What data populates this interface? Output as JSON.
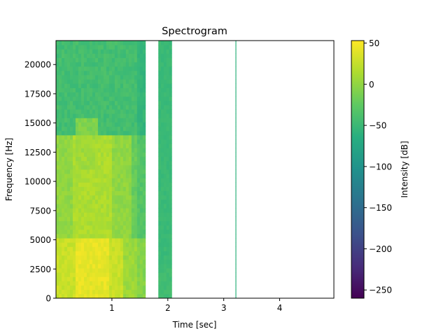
{
  "chart_data": {
    "type": "heatmap",
    "title": "Spectrogram",
    "xlabel": "Time [sec]",
    "ylabel": "Frequency [Hz]",
    "colorbar_label": "Intensity [dB]",
    "colormap": "viridis",
    "xlim": [
      0.0,
      4.97
    ],
    "ylim": [
      0,
      22050
    ],
    "x_ticks": [
      1,
      2,
      3,
      4
    ],
    "y_ticks": [
      0,
      2500,
      5000,
      7500,
      10000,
      12500,
      15000,
      17500,
      20000
    ],
    "clim": [
      -260,
      53
    ],
    "colorbar_ticks": [
      50,
      0,
      -50,
      -100,
      -150,
      -200,
      -250
    ],
    "data_segments": [
      {
        "t_start": 0.0,
        "t_end": 1.6
      },
      {
        "t_start": 1.83,
        "t_end": 2.07
      },
      {
        "t_start": 3.21,
        "t_end": 3.22
      }
    ],
    "approx_intensity_db": [
      {
        "region": "0.1–1.2 s, 0–5000 Hz",
        "level": 40
      },
      {
        "region": "0.1–1.4 s, 5000–14000 Hz",
        "level": 10
      },
      {
        "region": "0–1.6 s, 14000–22050 Hz",
        "level": -40
      },
      {
        "region": "1.83–2.07 s, all frequencies",
        "level": -45
      }
    ]
  },
  "labels": {
    "x_ticks": [
      "1",
      "2",
      "3",
      "4"
    ],
    "y_ticks": [
      "0",
      "2500",
      "5000",
      "7500",
      "10000",
      "12500",
      "15000",
      "17500",
      "20000"
    ],
    "colorbar_ticks": [
      "50",
      "0",
      "−50",
      "−100",
      "−150",
      "−200",
      "−250"
    ]
  }
}
